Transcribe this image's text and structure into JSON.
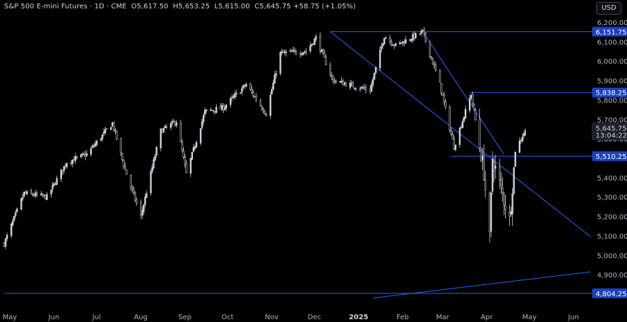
{
  "header": {
    "symbol": "S&P 500 E-mini Futures · 1D · CME",
    "open": "O5,617.50",
    "high": "H5,653.25",
    "low": "L5,615.00",
    "close": "C5,645.75",
    "change": "+58.75 (+1.05%)"
  },
  "currency_button": "USD",
  "colors": {
    "background": "#000000",
    "candle": "#d1d4dc",
    "level_line": "#2962ff",
    "level_label_bg": "#1e3fbf",
    "last_price_label_bg": "#1c1f27"
  },
  "chart_data": {
    "type": "candlestick",
    "ylim": [
      4750,
      6250
    ],
    "y_ticks": [
      "6,200.00",
      "6,100.00",
      "6,000.00",
      "5,900.00",
      "5,800.00",
      "5,700.00",
      "5,600.00",
      "5,500.00",
      "5,400.00",
      "5,300.00",
      "5,200.00",
      "5,100.00",
      "5,000.00",
      "4,900.00",
      "4,800.00"
    ],
    "x_ticks": [
      "May",
      "Jun",
      "Jul",
      "Aug",
      "Sep",
      "Oct",
      "Nov",
      "Dec",
      "2025",
      "Feb",
      "Mar",
      "Apr",
      "May",
      "Jun"
    ],
    "x_tick_bold": "2025",
    "levels": [
      {
        "label": "6,151.75",
        "value": 6151.75
      },
      {
        "label": "5,838.25",
        "value": 5838.25
      },
      {
        "label": "5,510.25",
        "value": 5510.25
      },
      {
        "label": "4,804.25",
        "value": 4804.25
      }
    ],
    "last_price": {
      "label": "5,645.75",
      "value": 5645.75,
      "countdown": "13:04:22"
    },
    "trendlines": [
      {
        "from": [
          "2024-12-16",
          6151.75
        ],
        "to": [
          "2025-06-17",
          5095
        ]
      },
      {
        "from": [
          "2025-02-19",
          6151.75
        ],
        "to": [
          "2025-04-17",
          5520
        ]
      },
      {
        "from": [
          "2025-01-15",
          4780
        ],
        "to": [
          "2025-06-17",
          4915
        ]
      }
    ],
    "level_segments": [
      {
        "from": "2024-12-16",
        "value": 6151.75
      },
      {
        "from": "2025-03-24",
        "value": 5838.25
      },
      {
        "from": "2025-03-11",
        "value": 5510.25
      },
      {
        "from": "2024-05-01",
        "value": 4804.25
      }
    ],
    "anchor_closes": [
      [
        "2024-05-01",
        5060
      ],
      [
        "2024-05-15",
        5320
      ],
      [
        "2024-05-31",
        5300
      ],
      [
        "2024-06-14",
        5480
      ],
      [
        "2024-06-28",
        5520
      ],
      [
        "2024-07-16",
        5680
      ],
      [
        "2024-07-25",
        5440
      ],
      [
        "2024-08-05",
        5200
      ],
      [
        "2024-08-19",
        5640
      ],
      [
        "2024-08-30",
        5690
      ],
      [
        "2024-09-06",
        5420
      ],
      [
        "2024-09-19",
        5740
      ],
      [
        "2024-10-02",
        5760
      ],
      [
        "2024-10-18",
        5880
      ],
      [
        "2024-11-01",
        5730
      ],
      [
        "2024-11-11",
        6040
      ],
      [
        "2024-11-29",
        6050
      ],
      [
        "2024-12-06",
        6120
      ],
      [
        "2024-12-18",
        5900
      ],
      [
        "2025-01-13",
        5850
      ],
      [
        "2025-01-23",
        6130
      ],
      [
        "2025-01-31",
        6080
      ],
      [
        "2025-02-19",
        6150
      ],
      [
        "2025-03-03",
        5880
      ],
      [
        "2025-03-13",
        5560
      ],
      [
        "2025-03-25",
        5830
      ],
      [
        "2025-04-03",
        5430
      ],
      [
        "2025-04-07",
        5080
      ],
      [
        "2025-04-09",
        5500
      ],
      [
        "2025-04-21",
        5180
      ],
      [
        "2025-04-25",
        5540
      ],
      [
        "2025-05-02",
        5645.75
      ]
    ],
    "x_range": [
      "2024-05-01",
      "2025-06-17"
    ]
  }
}
